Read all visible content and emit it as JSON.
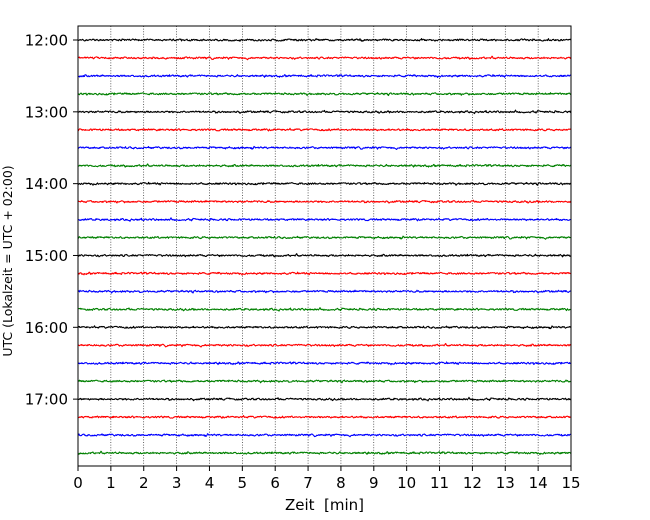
{
  "chart_data": {
    "type": "line",
    "subtype": "helicorder-seismogram",
    "title": "",
    "xlabel": "Zeit  [min]",
    "ylabel": "UTC (Lokalzeit = UTC + 02:00)",
    "xlim": [
      0,
      15
    ],
    "x_ticks": [
      "0",
      "1",
      "2",
      "3",
      "4",
      "5",
      "6",
      "7",
      "8",
      "9",
      "10",
      "11",
      "12",
      "13",
      "14",
      "15"
    ],
    "y_ticks": [
      "12:00",
      "13:00",
      "14:00",
      "15:00",
      "16:00",
      "17:00"
    ],
    "trace_interval_minutes": 15,
    "trace_start_times": [
      "12:00",
      "12:15",
      "12:30",
      "12:45",
      "13:00",
      "13:15",
      "13:30",
      "13:45",
      "14:00",
      "14:15",
      "14:30",
      "14:45",
      "15:00",
      "15:15",
      "15:30",
      "15:45",
      "16:00",
      "16:15",
      "16:30",
      "16:45",
      "17:00",
      "17:15",
      "17:30",
      "17:45"
    ],
    "trace_color_cycle": [
      "#000000",
      "#ff0000",
      "#0000ff",
      "#008000"
    ],
    "vertical_grid": "dotted",
    "legend": "none"
  }
}
